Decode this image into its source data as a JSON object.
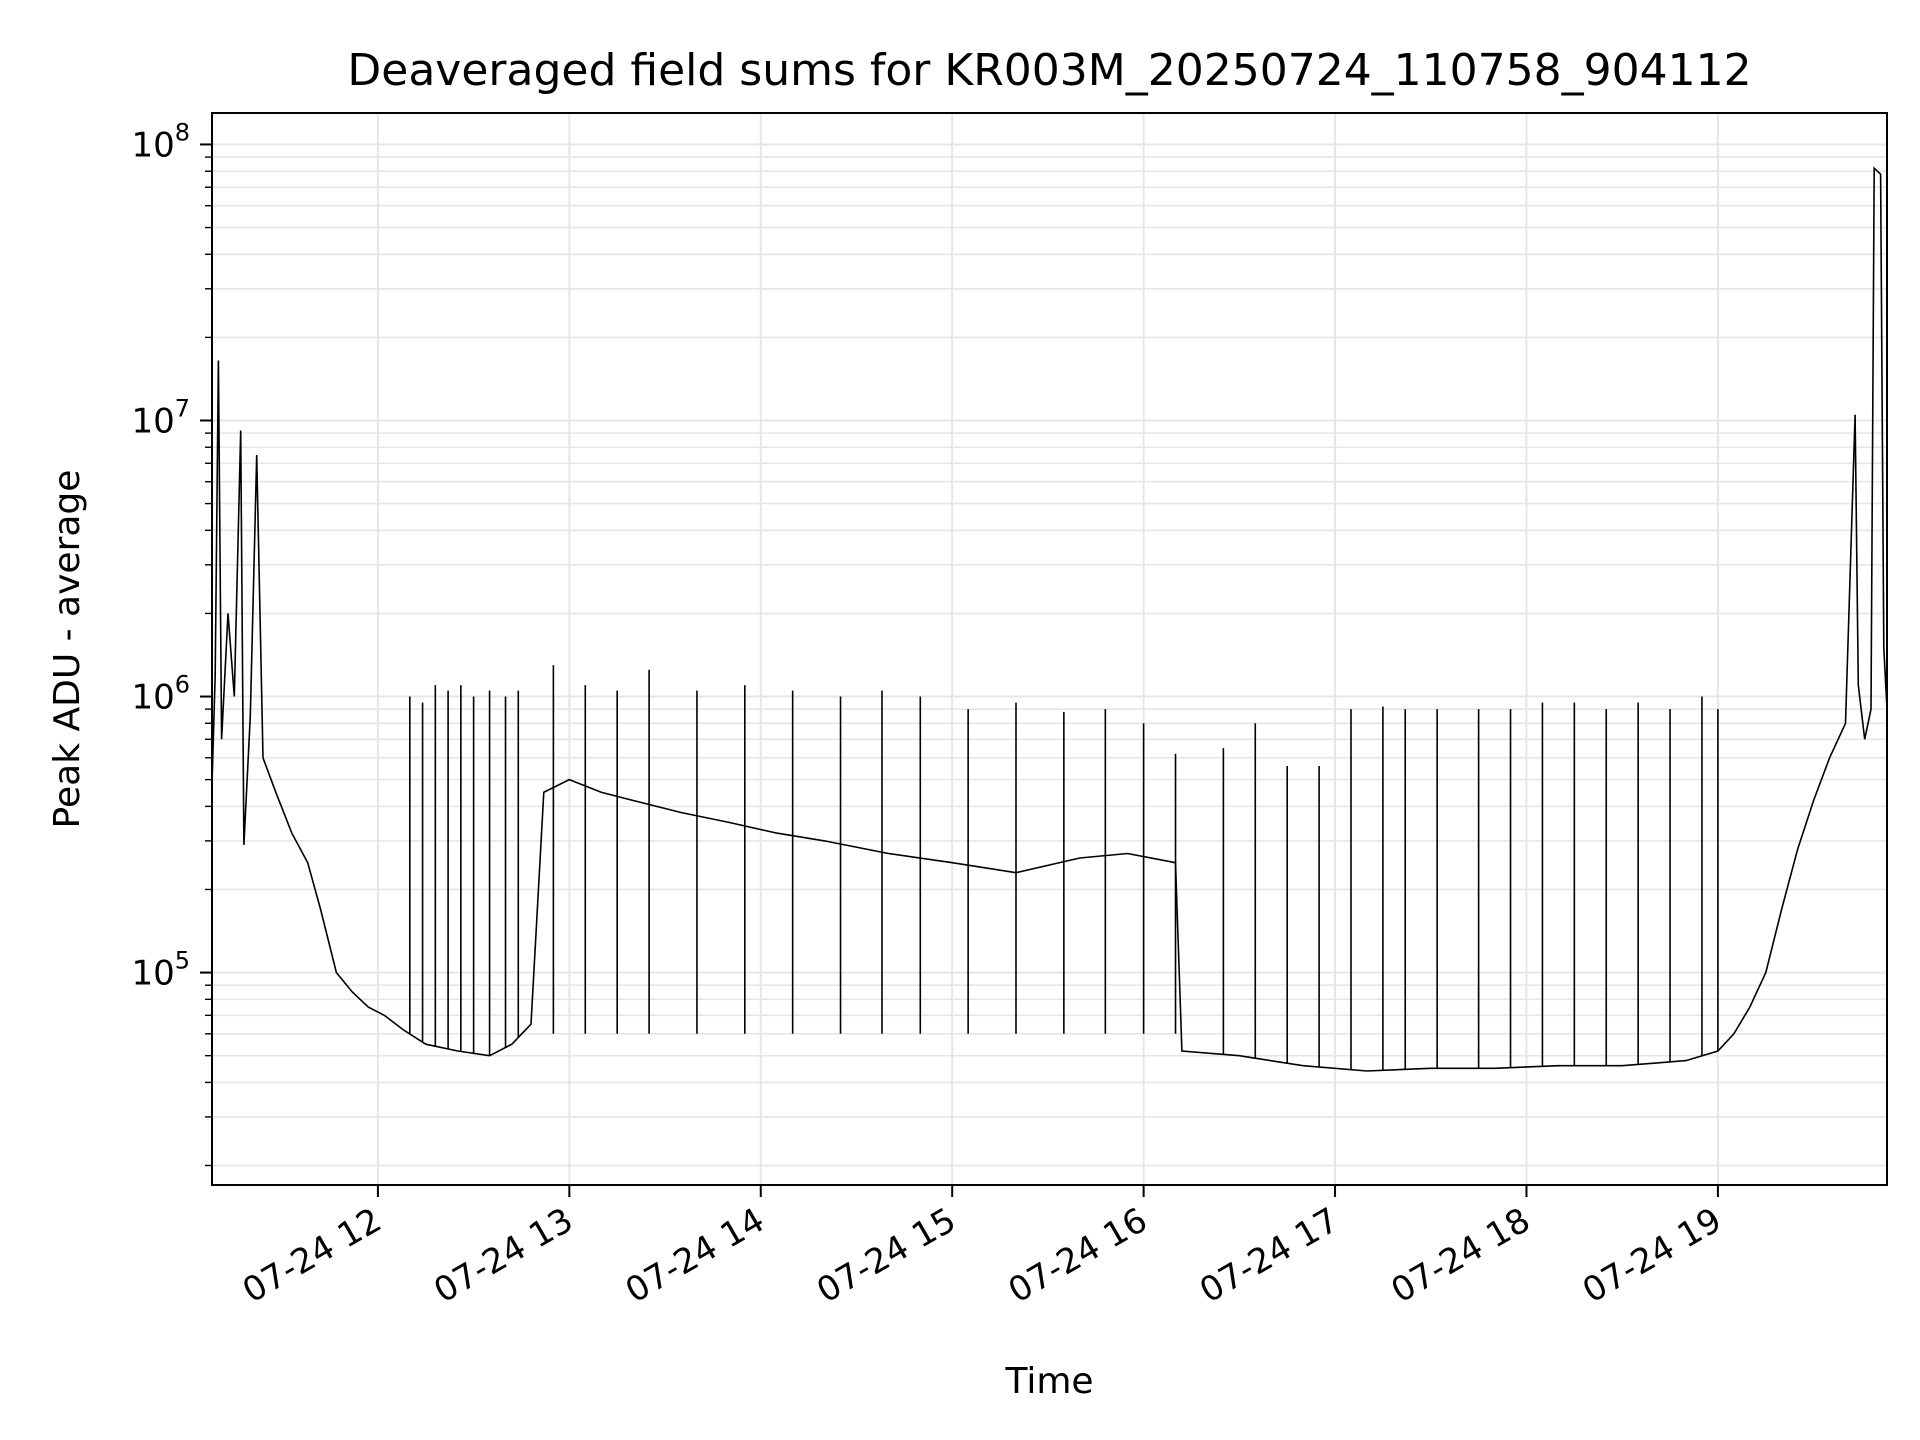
{
  "chart_data": {
    "type": "line",
    "title": "Deaveraged field sums for KR003M_20250724_110758_904112",
    "xlabel": "Time",
    "ylabel": "Peak ADU - average",
    "yscale": "log",
    "ylim": [
      17000,
      130000000
    ],
    "xlim": [
      "2025-07-24 11:08",
      "2025-07-24 19:53"
    ],
    "grid": true,
    "x_ticks": [
      {
        "value": "2025-07-24 12:00",
        "label": "07-24 12"
      },
      {
        "value": "2025-07-24 13:00",
        "label": "07-24 13"
      },
      {
        "value": "2025-07-24 14:00",
        "label": "07-24 14"
      },
      {
        "value": "2025-07-24 15:00",
        "label": "07-24 15"
      },
      {
        "value": "2025-07-24 16:00",
        "label": "07-24 16"
      },
      {
        "value": "2025-07-24 17:00",
        "label": "07-24 17"
      },
      {
        "value": "2025-07-24 18:00",
        "label": "07-24 18"
      },
      {
        "value": "2025-07-24 19:00",
        "label": "07-24 19"
      }
    ],
    "y_ticks": [
      {
        "value": 100000,
        "base": "10",
        "exp": "5"
      },
      {
        "value": 1000000,
        "base": "10",
        "exp": "6"
      },
      {
        "value": 10000000,
        "base": "10",
        "exp": "7"
      },
      {
        "value": 100000000,
        "base": "10",
        "exp": "8"
      }
    ],
    "series": [
      {
        "color": "#000000",
        "points": [
          [
            "2025-07-24 11:08",
            480000
          ],
          [
            "2025-07-24 11:09",
            1200000
          ],
          [
            "2025-07-24 11:10",
            16500000
          ],
          [
            "2025-07-24 11:11",
            700000
          ],
          [
            "2025-07-24 11:13",
            2000000
          ],
          [
            "2025-07-24 11:15",
            1000000
          ],
          [
            "2025-07-24 11:17",
            9200000
          ],
          [
            "2025-07-24 11:18",
            290000
          ],
          [
            "2025-07-24 11:20",
            850000
          ],
          [
            "2025-07-24 11:22",
            7500000
          ],
          [
            "2025-07-24 11:24",
            600000
          ],
          [
            "2025-07-24 11:28",
            450000
          ],
          [
            "2025-07-24 11:33",
            320000
          ],
          [
            "2025-07-24 11:38",
            250000
          ],
          [
            "2025-07-24 11:42",
            170000
          ],
          [
            "2025-07-24 11:47",
            100000
          ],
          [
            "2025-07-24 11:52",
            85000
          ],
          [
            "2025-07-24 11:57",
            75000
          ],
          [
            "2025-07-24 12:02",
            70000
          ],
          [
            "2025-07-24 12:08",
            62000
          ],
          [
            "2025-07-24 12:15",
            55000
          ],
          [
            "2025-07-24 12:25",
            52000
          ],
          [
            "2025-07-24 12:35",
            50000
          ],
          [
            "2025-07-24 12:42",
            55000
          ],
          [
            "2025-07-24 12:48",
            65000
          ],
          [
            "2025-07-24 12:52",
            450000
          ],
          [
            "2025-07-24 13:00",
            500000
          ],
          [
            "2025-07-24 13:10",
            450000
          ],
          [
            "2025-07-24 13:20",
            420000
          ],
          [
            "2025-07-24 13:35",
            380000
          ],
          [
            "2025-07-24 13:50",
            350000
          ],
          [
            "2025-07-24 14:05",
            320000
          ],
          [
            "2025-07-24 14:20",
            300000
          ],
          [
            "2025-07-24 14:40",
            270000
          ],
          [
            "2025-07-24 15:00",
            250000
          ],
          [
            "2025-07-24 15:20",
            230000
          ],
          [
            "2025-07-24 15:40",
            260000
          ],
          [
            "2025-07-24 15:55",
            270000
          ],
          [
            "2025-07-24 16:10",
            250000
          ],
          [
            "2025-07-24 16:12",
            52000
          ],
          [
            "2025-07-24 16:30",
            50000
          ],
          [
            "2025-07-24 16:50",
            46000
          ],
          [
            "2025-07-24 17:10",
            44000
          ],
          [
            "2025-07-24 17:30",
            45000
          ],
          [
            "2025-07-24 17:50",
            45000
          ],
          [
            "2025-07-24 18:10",
            46000
          ],
          [
            "2025-07-24 18:30",
            46000
          ],
          [
            "2025-07-24 18:50",
            48000
          ],
          [
            "2025-07-24 19:00",
            52000
          ],
          [
            "2025-07-24 19:05",
            60000
          ],
          [
            "2025-07-24 19:10",
            75000
          ],
          [
            "2025-07-24 19:15",
            100000
          ],
          [
            "2025-07-24 19:20",
            170000
          ],
          [
            "2025-07-24 19:25",
            280000
          ],
          [
            "2025-07-24 19:30",
            420000
          ],
          [
            "2025-07-24 19:35",
            600000
          ],
          [
            "2025-07-24 19:40",
            800000
          ],
          [
            "2025-07-24 19:43",
            10500000
          ],
          [
            "2025-07-24 19:44",
            1100000
          ],
          [
            "2025-07-24 19:46",
            700000
          ],
          [
            "2025-07-24 19:48",
            900000
          ],
          [
            "2025-07-24 19:49",
            82000000
          ],
          [
            "2025-07-24 19:51",
            78000000
          ],
          [
            "2025-07-24 19:52",
            1500000
          ],
          [
            "2025-07-24 19:53",
            900000
          ]
        ],
        "spikes": [
          [
            "2025-07-24 12:10",
            1000000
          ],
          [
            "2025-07-24 12:14",
            950000
          ],
          [
            "2025-07-24 12:18",
            1100000
          ],
          [
            "2025-07-24 12:22",
            1050000
          ],
          [
            "2025-07-24 12:26",
            1100000
          ],
          [
            "2025-07-24 12:30",
            1000000
          ],
          [
            "2025-07-24 12:35",
            1050000
          ],
          [
            "2025-07-24 12:40",
            1000000
          ],
          [
            "2025-07-24 12:44",
            1050000
          ],
          [
            "2025-07-24 12:55",
            1300000
          ],
          [
            "2025-07-24 13:05",
            1100000
          ],
          [
            "2025-07-24 13:15",
            1050000
          ],
          [
            "2025-07-24 13:25",
            1250000
          ],
          [
            "2025-07-24 13:40",
            1050000
          ],
          [
            "2025-07-24 13:55",
            1100000
          ],
          [
            "2025-07-24 14:10",
            1050000
          ],
          [
            "2025-07-24 14:25",
            1000000
          ],
          [
            "2025-07-24 14:38",
            1050000
          ],
          [
            "2025-07-24 14:50",
            1000000
          ],
          [
            "2025-07-24 15:05",
            900000
          ],
          [
            "2025-07-24 15:20",
            950000
          ],
          [
            "2025-07-24 15:35",
            880000
          ],
          [
            "2025-07-24 15:48",
            900000
          ],
          [
            "2025-07-24 16:00",
            800000
          ],
          [
            "2025-07-24 16:10",
            620000
          ],
          [
            "2025-07-24 16:25",
            650000
          ],
          [
            "2025-07-24 16:35",
            800000
          ],
          [
            "2025-07-24 16:45",
            560000
          ],
          [
            "2025-07-24 16:55",
            560000
          ],
          [
            "2025-07-24 17:05",
            900000
          ],
          [
            "2025-07-24 17:15",
            920000
          ],
          [
            "2025-07-24 17:22",
            900000
          ],
          [
            "2025-07-24 17:32",
            900000
          ],
          [
            "2025-07-24 17:45",
            900000
          ],
          [
            "2025-07-24 17:55",
            900000
          ],
          [
            "2025-07-24 18:05",
            950000
          ],
          [
            "2025-07-24 18:15",
            950000
          ],
          [
            "2025-07-24 18:25",
            900000
          ],
          [
            "2025-07-24 18:35",
            950000
          ],
          [
            "2025-07-24 18:45",
            900000
          ],
          [
            "2025-07-24 18:55",
            1000000
          ],
          [
            "2025-07-24 19:00",
            900000
          ]
        ]
      }
    ]
  }
}
